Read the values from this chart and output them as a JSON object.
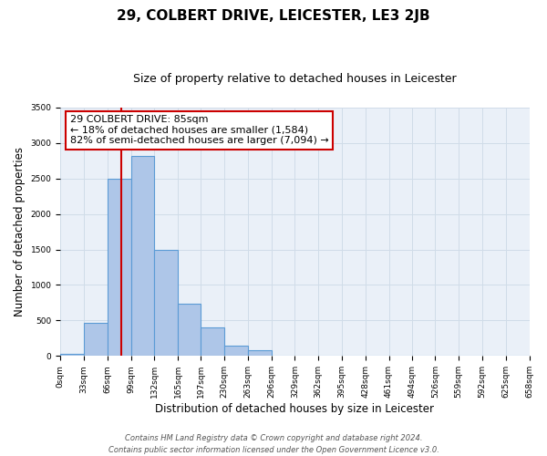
{
  "title": "29, COLBERT DRIVE, LEICESTER, LE3 2JB",
  "subtitle": "Size of property relative to detached houses in Leicester",
  "xlabel": "Distribution of detached houses by size in Leicester",
  "ylabel": "Number of detached properties",
  "bar_edges": [
    0,
    33,
    66,
    99,
    132,
    165,
    197,
    230,
    263,
    296,
    329,
    362,
    395,
    428,
    461,
    494,
    526,
    559,
    592,
    625,
    658
  ],
  "bar_heights": [
    30,
    470,
    2500,
    2820,
    1500,
    740,
    400,
    150,
    80,
    0,
    0,
    0,
    0,
    0,
    0,
    0,
    0,
    0,
    0,
    0
  ],
  "bar_color": "#aec6e8",
  "bar_edge_color": "#5b9bd5",
  "property_line_x": 85,
  "property_line_color": "#cc0000",
  "ylim": [
    0,
    3500
  ],
  "yticks": [
    0,
    500,
    1000,
    1500,
    2000,
    2500,
    3000,
    3500
  ],
  "xtick_labels": [
    "0sqm",
    "33sqm",
    "66sqm",
    "99sqm",
    "132sqm",
    "165sqm",
    "197sqm",
    "230sqm",
    "263sqm",
    "296sqm",
    "329sqm",
    "362sqm",
    "395sqm",
    "428sqm",
    "461sqm",
    "494sqm",
    "526sqm",
    "559sqm",
    "592sqm",
    "625sqm",
    "658sqm"
  ],
  "annotation_title": "29 COLBERT DRIVE: 85sqm",
  "annotation_line1": "← 18% of detached houses are smaller (1,584)",
  "annotation_line2": "82% of semi-detached houses are larger (7,094) →",
  "annotation_box_color": "#ffffff",
  "annotation_box_edge": "#cc0000",
  "grid_color": "#d0dce8",
  "background_color": "#eaf0f8",
  "footer_line1": "Contains HM Land Registry data © Crown copyright and database right 2024.",
  "footer_line2": "Contains public sector information licensed under the Open Government Licence v3.0.",
  "title_fontsize": 11,
  "subtitle_fontsize": 9,
  "axis_label_fontsize": 8.5,
  "tick_fontsize": 6.5,
  "annotation_fontsize": 8,
  "footer_fontsize": 6
}
